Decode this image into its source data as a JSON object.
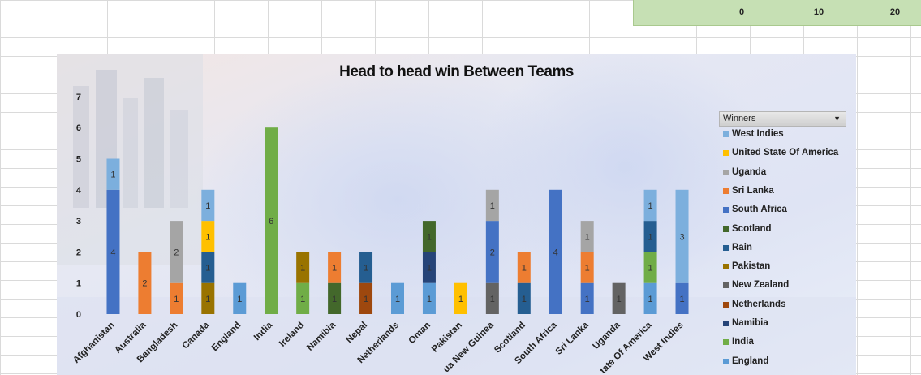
{
  "top_panel": {
    "ticks": [
      "0",
      "10",
      "20"
    ]
  },
  "legend": {
    "title": "Winners",
    "dropdown_icon": "dropdown-arrow-icon",
    "items": [
      "West Indies",
      "United State Of America",
      "Uganda",
      "Sri Lanka",
      "South Africa",
      "Scotland",
      "Rain",
      "Pakistan",
      "New Zealand",
      "Netherlands",
      "Namibia",
      "India",
      "England"
    ]
  },
  "colors": {
    "England": "#5b9bd5",
    "India": "#70ad47",
    "Namibia": "#264478",
    "Netherlands": "#9e480e",
    "New Zealand": "#636363",
    "Pakistan": "#997300",
    "Rain": "#255e91",
    "Scotland": "#43682b",
    "South Africa": "#4472c4",
    "Sri Lanka": "#ed7d31",
    "Uganda": "#a5a5a5",
    "United State Of America": "#ffc000",
    "West Indies": "#7cafdd"
  },
  "chart_data": {
    "type": "bar",
    "stacked": true,
    "title": "Head to head win Between Teams",
    "xlabel": "",
    "ylabel": "",
    "ylim": [
      0,
      7
    ],
    "yticks": [
      "0",
      "1",
      "2",
      "3",
      "4",
      "5",
      "6",
      "7"
    ],
    "grid": false,
    "legend_placement": "right",
    "categories": [
      "Afghanistan",
      "Australia",
      "Bangladesh",
      "Canada",
      "England",
      "India",
      "Ireland",
      "Namibia",
      "Nepal",
      "Netherlands",
      "Oman",
      "Pakistan",
      "Papua New Guinea",
      "Scotland",
      "South Africa",
      "Sri Lanka",
      "Uganda",
      "United State Of America",
      "West Indies"
    ],
    "category_labels": [
      "Afghanistan",
      "Australia",
      "Bangladesh",
      "Canada",
      "England",
      "India",
      "Ireland",
      "Namibia",
      "Nepal",
      "Netherlands",
      "Oman",
      "Pakistan",
      "ua New Guinea",
      "Scotland",
      "South Africa",
      "Sri Lanka",
      "Uganda",
      "tate Of America",
      "West Indies"
    ],
    "series": [
      {
        "name": "England",
        "values": [
          0,
          0,
          0,
          0,
          1,
          0,
          0,
          0,
          0,
          1,
          1,
          0,
          0,
          0,
          0,
          0,
          0,
          1,
          0
        ]
      },
      {
        "name": "India",
        "values": [
          0,
          0,
          0,
          0,
          0,
          6,
          1,
          0,
          0,
          0,
          0,
          0,
          0,
          0,
          0,
          0,
          0,
          1,
          0
        ]
      },
      {
        "name": "Namibia",
        "values": [
          0,
          0,
          0,
          0,
          0,
          0,
          0,
          0,
          0,
          0,
          1,
          0,
          0,
          0,
          0,
          0,
          0,
          0,
          0
        ]
      },
      {
        "name": "Netherlands",
        "values": [
          0,
          0,
          0,
          0,
          0,
          0,
          0,
          0,
          1,
          0,
          0,
          0,
          0,
          0,
          0,
          0,
          0,
          0,
          0
        ]
      },
      {
        "name": "New Zealand",
        "values": [
          0,
          0,
          0,
          0,
          0,
          0,
          0,
          0,
          0,
          0,
          0,
          0,
          1,
          0,
          0,
          0,
          1,
          0,
          0
        ]
      },
      {
        "name": "Pakistan",
        "values": [
          0,
          0,
          0,
          1,
          0,
          0,
          1,
          0,
          0,
          0,
          0,
          0,
          0,
          0,
          0,
          0,
          0,
          0,
          0
        ]
      },
      {
        "name": "Rain",
        "values": [
          0,
          0,
          0,
          1,
          0,
          0,
          0,
          0,
          1,
          0,
          0,
          0,
          0,
          1,
          0,
          0,
          0,
          1,
          0
        ]
      },
      {
        "name": "Scotland",
        "values": [
          0,
          0,
          0,
          0,
          0,
          0,
          0,
          1,
          0,
          0,
          1,
          0,
          0,
          0,
          0,
          0,
          0,
          0,
          0
        ]
      },
      {
        "name": "South Africa",
        "values": [
          4,
          0,
          0,
          0,
          0,
          0,
          0,
          0,
          0,
          0,
          0,
          0,
          2,
          0,
          4,
          1,
          0,
          0,
          1
        ]
      },
      {
        "name": "Sri Lanka",
        "values": [
          0,
          2,
          1,
          0,
          0,
          0,
          0,
          1,
          0,
          0,
          0,
          0,
          0,
          1,
          0,
          1,
          0,
          0,
          0
        ]
      },
      {
        "name": "Uganda",
        "values": [
          0,
          0,
          2,
          0,
          0,
          0,
          0,
          0,
          0,
          0,
          0,
          0,
          1,
          0,
          0,
          1,
          0,
          0,
          0
        ]
      },
      {
        "name": "United State Of America",
        "values": [
          0,
          0,
          0,
          1,
          0,
          0,
          0,
          0,
          0,
          0,
          0,
          1,
          0,
          0,
          0,
          0,
          0,
          0,
          0
        ]
      },
      {
        "name": "West Indies",
        "values": [
          1,
          0,
          0,
          1,
          0,
          0,
          0,
          0,
          0,
          0,
          0,
          0,
          0,
          0,
          0,
          0,
          0,
          1,
          3
        ]
      }
    ]
  }
}
